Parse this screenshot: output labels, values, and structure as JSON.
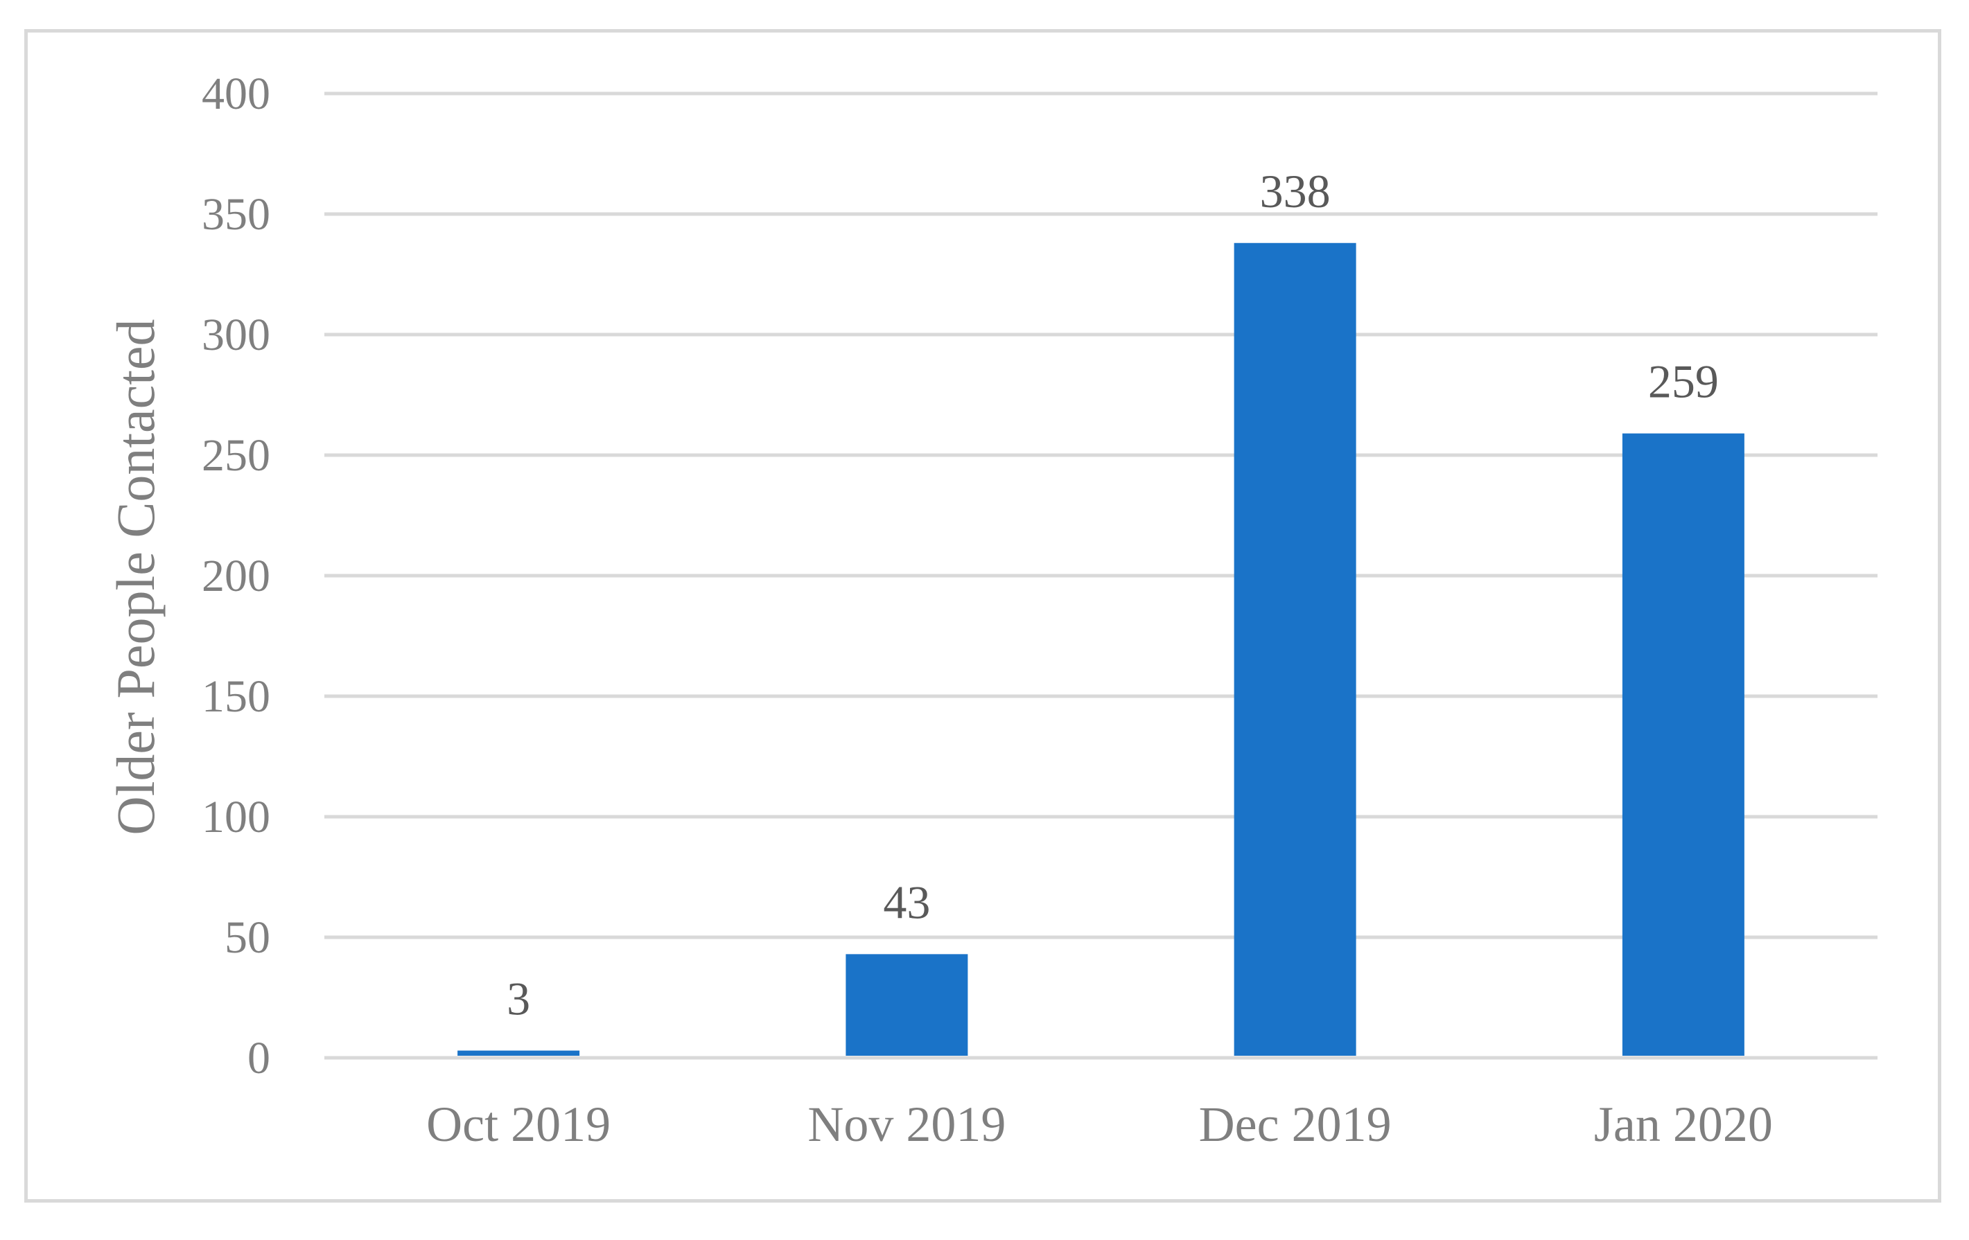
{
  "chart_data": {
    "type": "bar",
    "title": "",
    "xlabel": "",
    "ylabel": "Older People Contacted",
    "categories": [
      "Oct 2019",
      "Nov 2019",
      "Dec 2019",
      "Jan 2020"
    ],
    "values": [
      3,
      43,
      338,
      259
    ],
    "data_labels": [
      "3",
      "43",
      "338",
      "259"
    ],
    "ylim": [
      0,
      400
    ],
    "yticks": [
      0,
      50,
      100,
      150,
      200,
      250,
      300,
      350,
      400
    ],
    "grid": true,
    "legend": "none",
    "colors": {
      "bar": "#1a73c8",
      "grid": "#d9d9d9",
      "tick_text": "#7f7f7f",
      "data_label_text": "#595959",
      "frame": "#d9d9d9"
    }
  }
}
